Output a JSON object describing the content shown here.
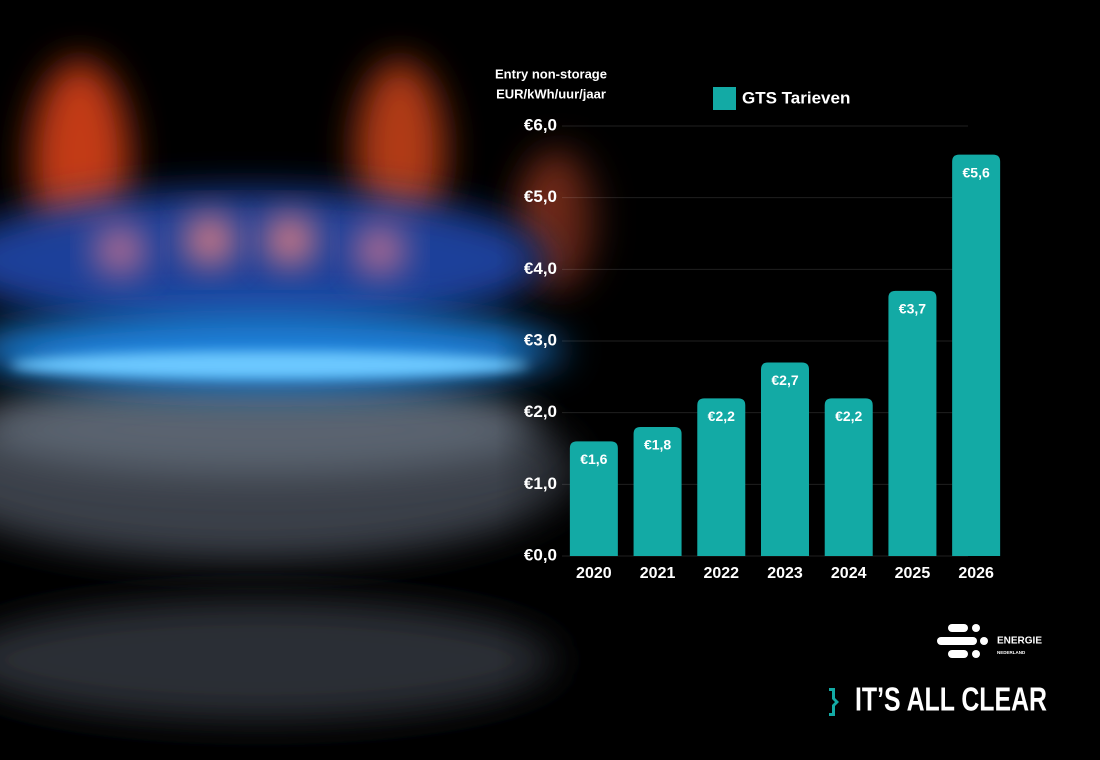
{
  "chart_data": {
    "type": "bar",
    "ylabel": [
      "Entry non-storage",
      "EUR/kWh/uur/jaar"
    ],
    "categories": [
      "2020",
      "2021",
      "2022",
      "2023",
      "2024",
      "2025",
      "2026"
    ],
    "series": [
      {
        "name": "GTS Tarieven",
        "color": "#13aaa5",
        "values": [
          1.6,
          1.8,
          2.2,
          2.7,
          2.2,
          3.7,
          5.6
        ],
        "value_labels": [
          "€1,6",
          "€1,8",
          "€2,2",
          "€2,7",
          "€2,2",
          "€3,7",
          "€5,6"
        ]
      }
    ],
    "ylim": [
      0,
      6
    ],
    "yticks": [
      {
        "value": 0,
        "label": "€0,0"
      },
      {
        "value": 1,
        "label": "€1,0"
      },
      {
        "value": 2,
        "label": "€2,0"
      },
      {
        "value": 3,
        "label": "€3,0"
      },
      {
        "value": 4,
        "label": "€4,0"
      },
      {
        "value": 5,
        "label": "€5,0"
      },
      {
        "value": 6,
        "label": "€6,0"
      }
    ],
    "grid": true,
    "legend": "top"
  },
  "branding": {
    "logo_top": "ENERGIE",
    "logo_bottom": "NEDERLAND",
    "slogan": "IT’S ALL CLEAR"
  }
}
